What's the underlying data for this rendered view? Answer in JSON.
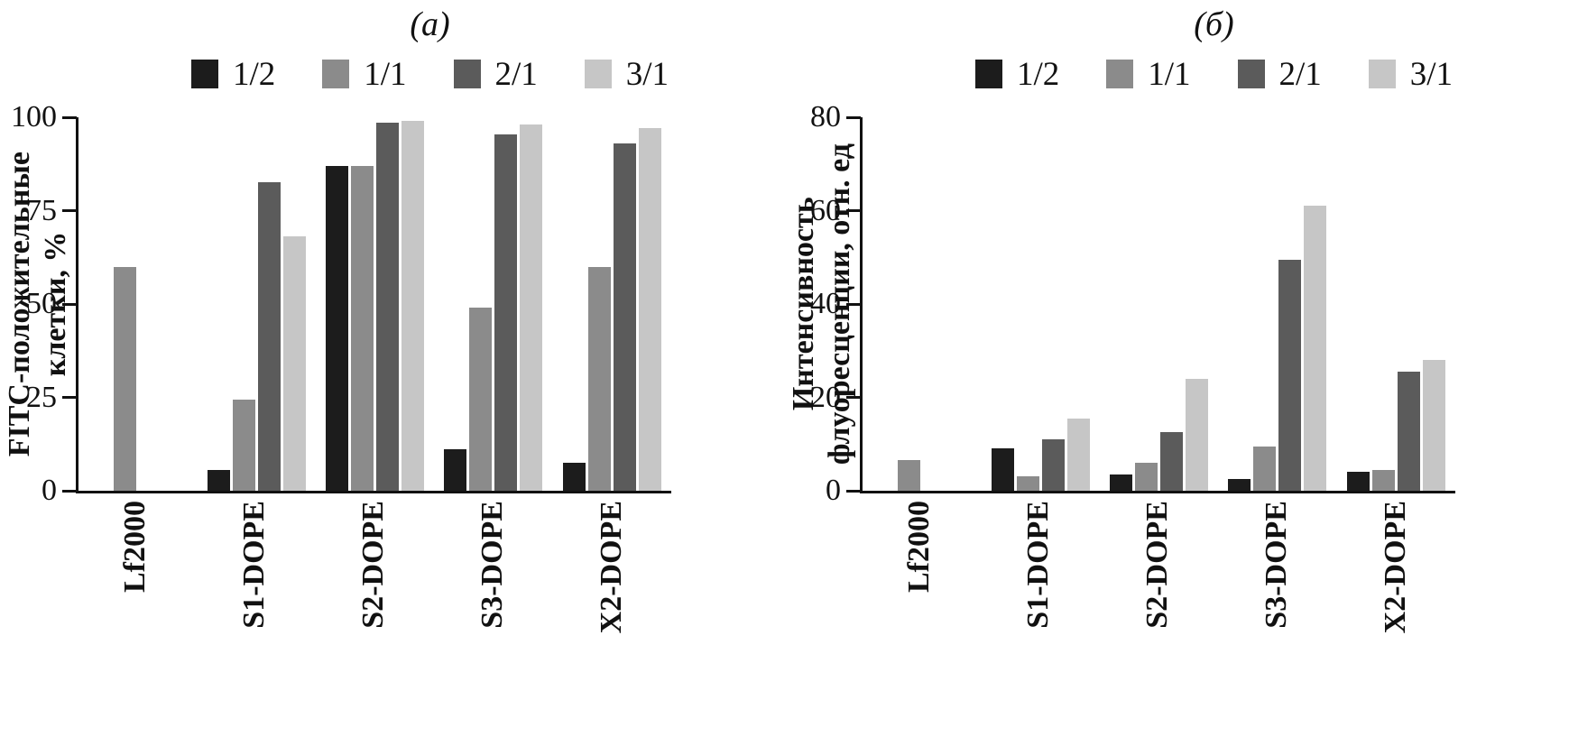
{
  "chart_data": [
    {
      "type": "bar",
      "title": "(а)",
      "ylabel": "FITC-положительные клетки, %",
      "ylabel_lines": [
        "FITC-положительные",
        "клетки, %"
      ],
      "xlabel": "",
      "categories": [
        "Lf2000",
        "S1-DOPE",
        "S2-DOPE",
        "S3-DOPE",
        "X2-DOPE"
      ],
      "series": [
        {
          "name": "1/2",
          "color": "#1c1c1c",
          "values": [
            0,
            5.5,
            87,
            11,
            7.5
          ]
        },
        {
          "name": "1/1",
          "color": "#8b8b8b",
          "values": [
            60,
            24.5,
            87,
            49,
            60
          ]
        },
        {
          "name": "2/1",
          "color": "#5b5b5b",
          "values": [
            0,
            82.5,
            98.5,
            95.5,
            93
          ]
        },
        {
          "name": "3/1",
          "color": "#c6c6c6",
          "values": [
            0,
            68,
            99,
            98,
            97
          ]
        }
      ],
      "ylim": [
        0,
        100
      ],
      "yticks": [
        0,
        25,
        50,
        75,
        100
      ],
      "grid": false,
      "legend_position": "top"
    },
    {
      "type": "bar",
      "title": "(б)",
      "ylabel": "Интенсивность флуоресценции, отн. ед",
      "ylabel_lines": [
        "Интенсивность",
        "флуоресценции, отн. ед"
      ],
      "xlabel": "",
      "categories": [
        "Lf2000",
        "S1-DOPE",
        "S2-DOPE",
        "S3-DOPE",
        "X2-DOPE"
      ],
      "series": [
        {
          "name": "1/2",
          "color": "#1c1c1c",
          "values": [
            0,
            9,
            3.5,
            2.5,
            4
          ]
        },
        {
          "name": "1/1",
          "color": "#8b8b8b",
          "values": [
            6.5,
            3,
            6,
            9.5,
            4.5
          ]
        },
        {
          "name": "2/1",
          "color": "#5b5b5b",
          "values": [
            0,
            11,
            12.5,
            49.5,
            25.5
          ]
        },
        {
          "name": "3/1",
          "color": "#c6c6c6",
          "values": [
            0,
            15.5,
            24,
            61,
            28
          ]
        }
      ],
      "ylim": [
        0,
        80
      ],
      "yticks": [
        0,
        20,
        40,
        60,
        80
      ],
      "grid": false,
      "legend_position": "top"
    }
  ]
}
